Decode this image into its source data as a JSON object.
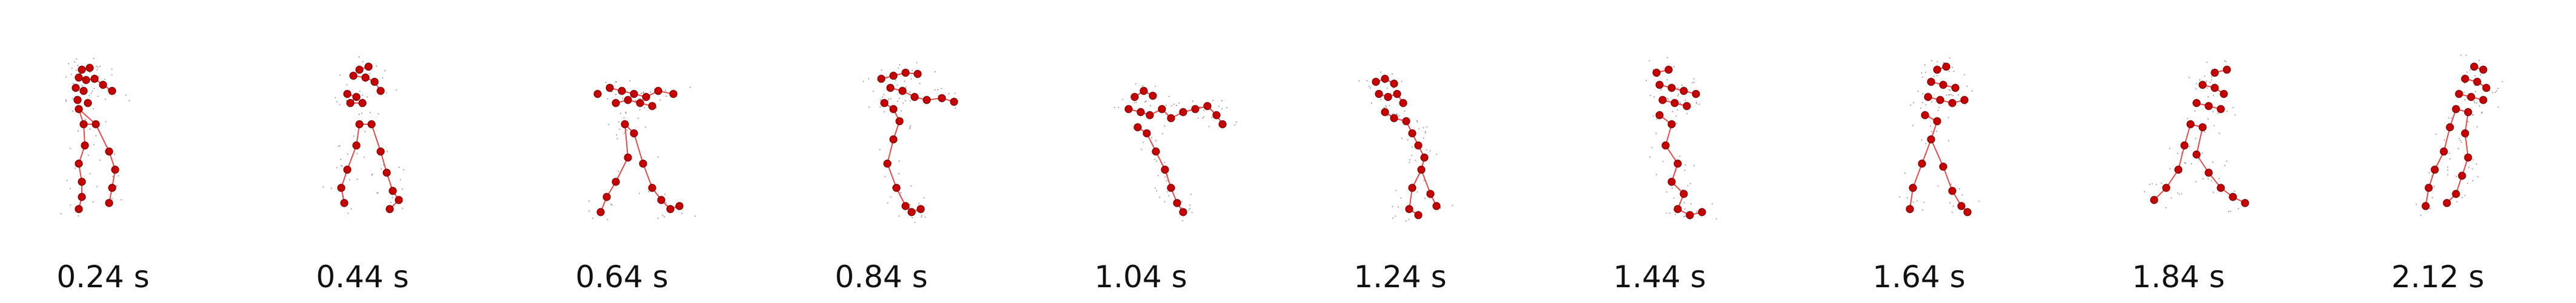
{
  "figure": {
    "colors": {
      "joint": "#c80000",
      "joint_edge": "#700000",
      "bone": "#e34a4a",
      "points": "#555555",
      "background": "#ffffff"
    },
    "frames": [
      {
        "time": "0.24 s"
      },
      {
        "time": "0.44 s"
      },
      {
        "time": "0.64 s"
      },
      {
        "time": "0.84 s"
      },
      {
        "time": "1.04 s"
      },
      {
        "time": "1.24 s"
      },
      {
        "time": "1.44 s"
      },
      {
        "time": "1.64 s"
      },
      {
        "time": "1.84 s"
      },
      {
        "time": "2.12 s"
      }
    ]
  }
}
